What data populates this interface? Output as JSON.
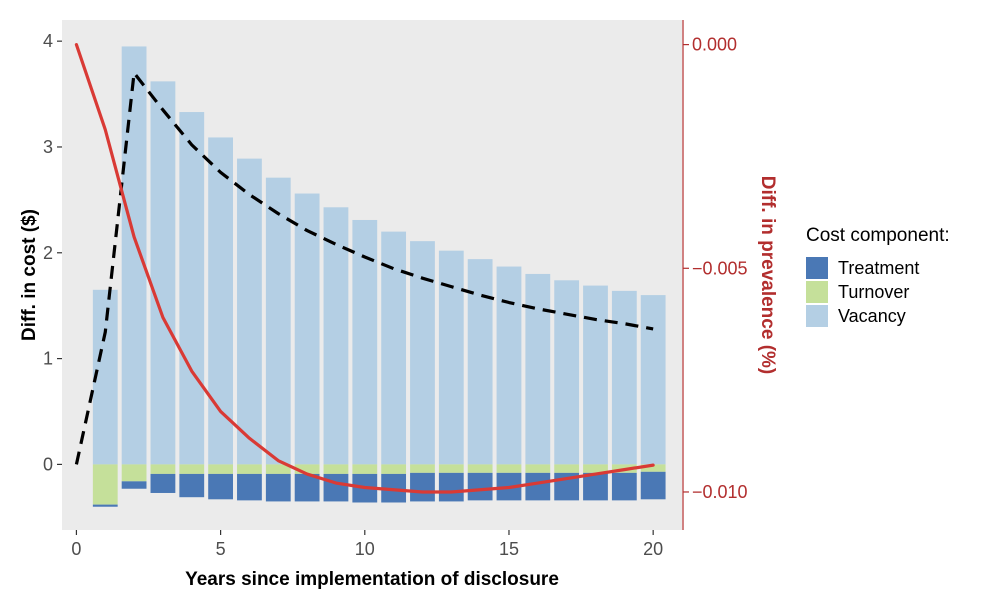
{
  "chart_data": {
    "type": "bar",
    "subtype": "stacked-bar-with-lines-dual-axis",
    "title": "",
    "xlabel": "Years since implementation of disclosure",
    "ylabel_left": "Diff. in cost ($)",
    "ylabel_right": "Diff. in prevalence (%)",
    "xlim": [
      -0.5,
      21
    ],
    "ylim_left": [
      -0.62,
      4.2
    ],
    "ylim_right": [
      -0.01085,
      0.00055
    ],
    "x_ticks": [
      "0",
      "5",
      "10",
      "15",
      "20"
    ],
    "y_left_ticks": [
      "0",
      "1",
      "2",
      "3",
      "4"
    ],
    "y_right_ticks": [
      "0.000",
      "−0.005",
      "−0.010"
    ],
    "colors": {
      "panel": "#ebebeb",
      "treatment": "#4a78b5",
      "turnover": "#c5e09a",
      "vacancy": "#b4cfe4",
      "prevalence_line": "#d93a35",
      "right_axis": "#b22e2e",
      "cost_line": "#000000"
    },
    "legend": {
      "title": "Cost component:",
      "position": "right",
      "items": [
        {
          "label": "Treatment",
          "color": "#4a78b5"
        },
        {
          "label": "Turnover",
          "color": "#c5e09a"
        },
        {
          "label": "Vacancy",
          "color": "#b4cfe4"
        }
      ]
    },
    "bar_x": [
      1,
      2,
      3,
      4,
      5,
      6,
      7,
      8,
      9,
      10,
      11,
      12,
      13,
      14,
      15,
      16,
      17,
      18,
      19,
      20
    ],
    "series": [
      {
        "name": "Vacancy",
        "values": [
          1.65,
          3.95,
          3.62,
          3.33,
          3.09,
          2.89,
          2.71,
          2.56,
          2.43,
          2.31,
          2.2,
          2.11,
          2.02,
          1.94,
          1.87,
          1.8,
          1.74,
          1.69,
          1.64,
          1.6
        ]
      },
      {
        "name": "Turnover",
        "values": [
          -0.38,
          -0.16,
          -0.09,
          -0.09,
          -0.09,
          -0.09,
          -0.09,
          -0.09,
          -0.09,
          -0.09,
          -0.09,
          -0.08,
          -0.08,
          -0.08,
          -0.08,
          -0.08,
          -0.08,
          -0.08,
          -0.08,
          -0.07
        ]
      },
      {
        "name": "Treatment",
        "values": [
          -0.02,
          -0.07,
          -0.18,
          -0.22,
          -0.24,
          -0.25,
          -0.26,
          -0.26,
          -0.26,
          -0.27,
          -0.27,
          -0.27,
          -0.27,
          -0.26,
          -0.26,
          -0.26,
          -0.26,
          -0.26,
          -0.26,
          -0.26
        ]
      }
    ],
    "cost_total_line": {
      "style": "dashed",
      "x": [
        0,
        1,
        2,
        3,
        4,
        5,
        6,
        7,
        8,
        9,
        10,
        11,
        12,
        13,
        14,
        15,
        16,
        17,
        18,
        19,
        20
      ],
      "y": [
        0.0,
        1.25,
        3.7,
        3.35,
        3.02,
        2.76,
        2.55,
        2.37,
        2.21,
        2.08,
        1.96,
        1.85,
        1.76,
        1.68,
        1.6,
        1.53,
        1.47,
        1.42,
        1.37,
        1.33,
        1.28
      ]
    },
    "prevalence_line": {
      "axis": "right",
      "x": [
        0,
        1,
        2,
        3,
        4,
        5,
        6,
        7,
        8,
        9,
        10,
        11,
        12,
        13,
        14,
        15,
        16,
        17,
        18,
        19,
        20
      ],
      "y": [
        0.0,
        -0.0019,
        -0.0043,
        -0.0061,
        -0.0073,
        -0.0082,
        -0.0088,
        -0.0093,
        -0.0096,
        -0.0098,
        -0.0099,
        -0.00995,
        -0.01,
        -0.01,
        -0.00995,
        -0.0099,
        -0.0098,
        -0.0097,
        -0.0096,
        -0.0095,
        -0.0094
      ]
    }
  }
}
